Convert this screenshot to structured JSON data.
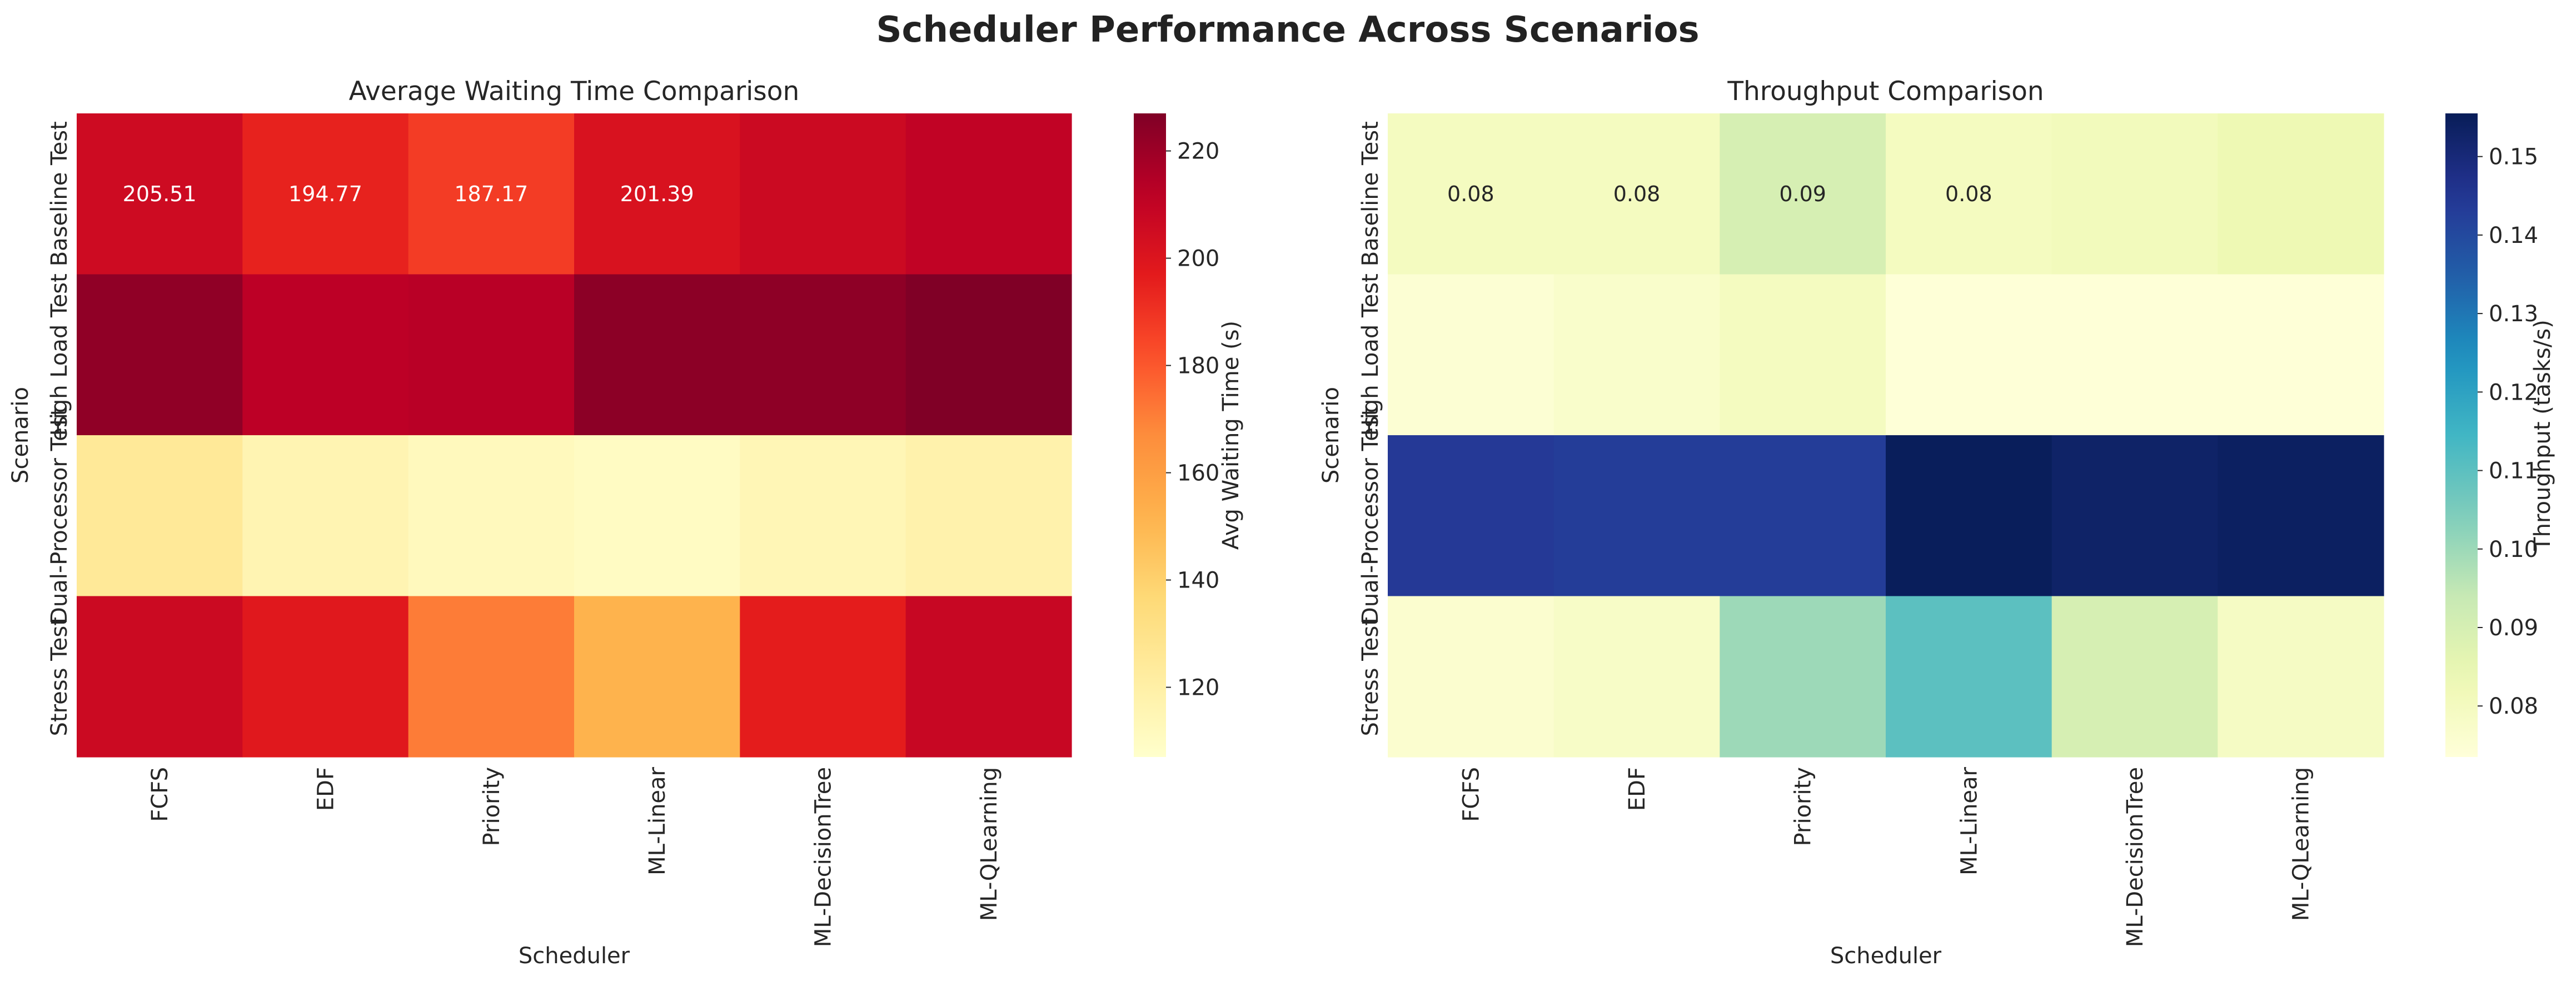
{
  "figure": {
    "title": "Scheduler Performance Across Scenarios"
  },
  "chart_data": [
    {
      "type": "heatmap",
      "title": "Average Waiting Time Comparison",
      "xlabel": "Scheduler",
      "ylabel": "Scenario",
      "x_categories": [
        "FCFS",
        "EDF",
        "Priority",
        "ML-Linear",
        "ML-DecisionTree",
        "ML-QLearning"
      ],
      "y_categories": [
        "Baseline Test",
        "High Load Test",
        "Dual-Processor Test",
        "Stress Test"
      ],
      "values": [
        [
          205.51,
          194.77,
          187.17,
          201.39,
          206.5,
          210.5
        ],
        [
          223.0,
          212.0,
          213.0,
          224.0,
          223.5,
          227.0
        ],
        [
          125.0,
          116.0,
          112.0,
          110.0,
          114.5,
          118.0
        ],
        [
          206.5,
          198.0,
          171.0,
          151.5,
          196.5,
          208.0
        ]
      ],
      "annotations_shown": [
        [
          true,
          true,
          true,
          true,
          false,
          false
        ],
        [
          false,
          false,
          false,
          false,
          false,
          false
        ],
        [
          false,
          false,
          false,
          false,
          false,
          false
        ],
        [
          false,
          false,
          false,
          false,
          false,
          false
        ]
      ],
      "annotation_labels": [
        [
          "205.51",
          "194.77",
          "187.17",
          "201.39",
          "",
          ""
        ],
        [
          "",
          "",
          "",
          "",
          "",
          ""
        ],
        [
          "",
          "",
          "",
          "",
          "",
          ""
        ],
        [
          "",
          "",
          "",
          "",
          "",
          ""
        ]
      ],
      "colormap": "YlOrRd",
      "vmin": 107,
      "vmax": 227,
      "colorbar": {
        "label": "Avg Waiting Time (s)",
        "ticks": [
          120,
          140,
          160,
          180,
          200,
          220
        ]
      }
    },
    {
      "type": "heatmap",
      "title": "Throughput Comparison",
      "xlabel": "Scheduler",
      "ylabel": "Scenario",
      "x_categories": [
        "FCFS",
        "EDF",
        "Priority",
        "ML-Linear",
        "ML-DecisionTree",
        "ML-QLearning"
      ],
      "y_categories": [
        "Baseline Test",
        "High Load Test",
        "Dual-Processor Test",
        "Stress Test"
      ],
      "values": [
        [
          0.08,
          0.08,
          0.09,
          0.08,
          0.081,
          0.083
        ],
        [
          0.075,
          0.077,
          0.08,
          0.074,
          0.074,
          0.074
        ],
        [
          0.144,
          0.143,
          0.143,
          0.155,
          0.153,
          0.154
        ],
        [
          0.076,
          0.078,
          0.1,
          0.11,
          0.09,
          0.079
        ]
      ],
      "annotations_shown": [
        [
          true,
          true,
          true,
          true,
          false,
          false
        ],
        [
          false,
          false,
          false,
          false,
          false,
          false
        ],
        [
          false,
          false,
          false,
          false,
          false,
          false
        ],
        [
          false,
          false,
          false,
          false,
          false,
          false
        ]
      ],
      "annotation_labels": [
        [
          "0.08",
          "0.08",
          "0.09",
          "0.08",
          "",
          ""
        ],
        [
          "",
          "",
          "",
          "",
          "",
          ""
        ],
        [
          "",
          "",
          "",
          "",
          "",
          ""
        ],
        [
          "",
          "",
          "",
          "",
          "",
          ""
        ]
      ],
      "colormap": "YlGnBu",
      "vmin": 0.0735,
      "vmax": 0.1555,
      "colorbar": {
        "label": "Throughput (tasks/s)",
        "ticks": [
          0.08,
          0.09,
          0.1,
          0.11,
          0.12,
          0.13,
          0.14,
          0.15
        ]
      }
    }
  ]
}
